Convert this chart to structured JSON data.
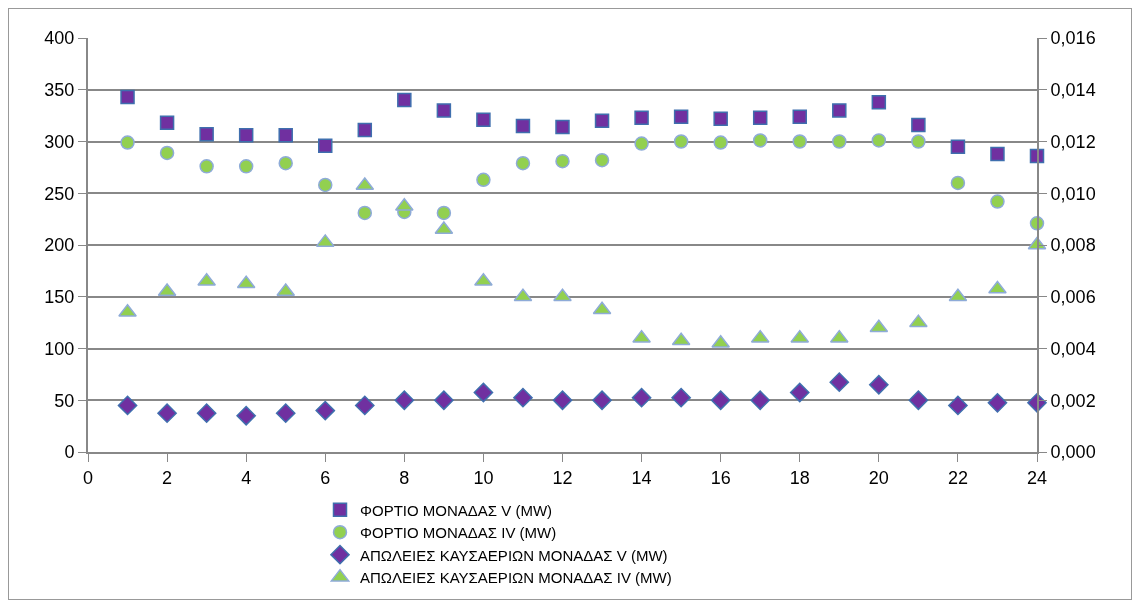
{
  "chart_data": {
    "type": "scatter",
    "x": [
      1,
      2,
      3,
      4,
      5,
      6,
      7,
      8,
      9,
      10,
      11,
      12,
      13,
      14,
      15,
      16,
      17,
      18,
      19,
      20,
      21,
      22,
      23,
      24
    ],
    "xlim": [
      0,
      24
    ],
    "xticks": [
      0,
      2,
      4,
      6,
      8,
      10,
      12,
      14,
      16,
      18,
      20,
      22,
      24
    ],
    "ylim": [
      0,
      400
    ],
    "yticks": [
      0,
      50,
      100,
      150,
      200,
      250,
      300,
      350,
      400
    ],
    "y2lim": [
      0,
      0.016
    ],
    "y2ticks": [
      {
        "value": 0,
        "label": "0,000"
      },
      {
        "value": 0.002,
        "label": "0,002"
      },
      {
        "value": 0.004,
        "label": "0,004"
      },
      {
        "value": 0.006,
        "label": "0,006"
      },
      {
        "value": 0.008,
        "label": "0,008"
      },
      {
        "value": 0.01,
        "label": "0,010"
      },
      {
        "value": 0.012,
        "label": "0,012"
      },
      {
        "value": 0.014,
        "label": "0,014"
      },
      {
        "value": 0.016,
        "label": "0,016"
      }
    ],
    "grid": "y",
    "legend": "bottom",
    "series": [
      {
        "name": "ΦΟΡΤΙΟ ΜΟΝΑΔΑΣ V (MW)",
        "color": "#7030a0",
        "marker": "square",
        "values": [
          343,
          318,
          307,
          306,
          306,
          296,
          311,
          340,
          330,
          321,
          315,
          314,
          320,
          323,
          324,
          322,
          323,
          324,
          330,
          338,
          316,
          295,
          288,
          286
        ]
      },
      {
        "name": "ΦΟΡΤΙΟ ΜΟΝΑΔΑΣ IV (MW)",
        "color": "#92d050",
        "marker": "circle",
        "values": [
          299,
          289,
          276,
          276,
          279,
          258,
          231,
          232,
          231,
          263,
          279,
          281,
          282,
          298,
          300,
          299,
          301,
          300,
          300,
          301,
          300,
          260,
          242,
          221
        ]
      },
      {
        "name": "ΑΠΩΛΕΙΕΣ ΚΑΥΣΑΕΡΙΩΝ ΜΟΝΑΔΑΣ V (MW)",
        "color": "#7030a0",
        "marker": "diamond",
        "axis": "y2",
        "values": [
          0.0018,
          0.0015,
          0.0015,
          0.0014,
          0.0015,
          0.0016,
          0.0018,
          0.002,
          0.002,
          0.0023,
          0.0021,
          0.002,
          0.002,
          0.0021,
          0.0021,
          0.002,
          0.002,
          0.0023,
          0.0027,
          0.0026,
          0.002,
          0.0018,
          0.0019,
          0.0019
        ]
      },
      {
        "name": "ΑΠΩΛΕΙΕΣ ΚΑΥΣΑΕΡΙΩΝ ΜΟΝΑΔΑΣ IV (MW)",
        "color": "#92d050",
        "marker": "triangle",
        "axis": "y2",
        "values": [
          0.0054,
          0.0062,
          0.0066,
          0.0065,
          0.0062,
          0.0081,
          0.0103,
          0.0095,
          0.0086,
          0.0066,
          0.006,
          0.006,
          0.0055,
          0.0044,
          0.0043,
          0.0042,
          0.0044,
          0.0044,
          0.0044,
          0.0048,
          0.005,
          0.006,
          0.0063,
          0.008
        ]
      }
    ]
  }
}
